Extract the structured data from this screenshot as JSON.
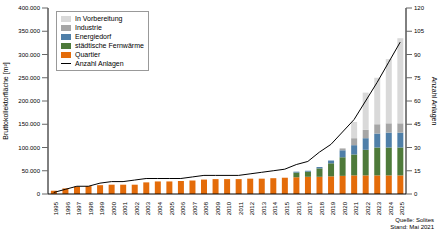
{
  "chart_data": {
    "type": "bar",
    "stacked": true,
    "grid": false,
    "legend": "upper left",
    "y_label": "Bruttokollektorfläche [m²]",
    "y2_label": "Anzahl Anlagen",
    "annotations": [
      "Quelle: Solites",
      "Stand: Mai 2021"
    ],
    "categories": [
      "1995",
      "1996",
      "1997",
      "1998",
      "1999",
      "2000",
      "2001",
      "2002",
      "2003",
      "2004",
      "2005",
      "2006",
      "2007",
      "2008",
      "2009",
      "2010",
      "2011",
      "2012",
      "2013",
      "2014",
      "2015",
      "2016",
      "2017",
      "2018",
      "2019",
      "2020",
      "2021",
      "2022",
      "2023",
      "2024",
      "2025"
    ],
    "ylim": [
      0,
      400000
    ],
    "yticks": [
      0,
      {
        "value": 50000,
        "label": "50.000"
      },
      {
        "value": 100000,
        "label": "100.000"
      },
      {
        "value": 150000,
        "label": "150.000"
      },
      {
        "value": 200000,
        "label": "200.000"
      },
      {
        "value": 250000,
        "label": "250.000"
      },
      {
        "value": 300000,
        "label": "300.000"
      },
      {
        "value": 350000,
        "label": "350.000"
      },
      {
        "value": 400000,
        "label": "400.000"
      }
    ],
    "y2lim": [
      0,
      120
    ],
    "y2ticks": [
      0,
      15,
      30,
      45,
      60,
      75,
      90,
      105,
      120
    ],
    "series": [
      {
        "name": "Quartier",
        "color": "#e46c0a",
        "type": "bar",
        "values": [
          7000,
          12000,
          16000,
          17000,
          19000,
          20000,
          20000,
          20000,
          25000,
          27000,
          27000,
          28000,
          29000,
          31000,
          32000,
          32000,
          32000,
          33000,
          33000,
          34000,
          35000,
          36000,
          37000,
          37000,
          38000,
          39000,
          40000,
          40000,
          40000,
          40000,
          40000
        ]
      },
      {
        "name": "städtische Fernwärme",
        "color": "#4e7a3a",
        "type": "bar",
        "values": [
          0,
          0,
          0,
          0,
          0,
          0,
          0,
          0,
          0,
          0,
          0,
          0,
          0,
          0,
          0,
          0,
          0,
          0,
          0,
          0,
          0,
          10000,
          11000,
          18000,
          28000,
          40000,
          45000,
          55000,
          60000,
          60000,
          60000
        ]
      },
      {
        "name": "Energiedorf",
        "color": "#4f7fa8",
        "type": "bar",
        "values": [
          0,
          0,
          0,
          0,
          0,
          0,
          0,
          0,
          0,
          0,
          0,
          0,
          0,
          0,
          0,
          0,
          0,
          0,
          0,
          0,
          0,
          2000,
          2000,
          3000,
          6000,
          15000,
          20000,
          25000,
          30000,
          32000,
          32000
        ]
      },
      {
        "name": "Industrie",
        "color": "#a6a6a6",
        "type": "bar",
        "values": [
          0,
          0,
          0,
          0,
          0,
          0,
          0,
          0,
          0,
          0,
          0,
          0,
          0,
          0,
          0,
          0,
          0,
          0,
          0,
          0,
          0,
          0,
          0,
          0,
          0,
          4000,
          15000,
          18000,
          20000,
          20000,
          20000
        ]
      },
      {
        "name": "In Vorbereitung",
        "color": "#d9d9d9",
        "type": "bar",
        "values": [
          0,
          0,
          0,
          0,
          0,
          0,
          0,
          0,
          0,
          0,
          0,
          0,
          0,
          0,
          0,
          0,
          0,
          0,
          0,
          0,
          0,
          0,
          0,
          0,
          0,
          0,
          35000,
          80000,
          100000,
          138000,
          183000
        ]
      },
      {
        "name": "Anzahl Anlagen",
        "color": "#000000",
        "type": "line",
        "axis": "y2",
        "values": [
          1,
          3,
          5,
          5,
          7,
          8,
          8,
          9,
          10,
          10,
          10,
          10,
          11,
          12,
          12,
          12,
          12,
          13,
          14,
          15,
          16,
          19,
          21,
          27,
          32,
          40,
          48,
          60,
          72,
          85,
          98
        ]
      }
    ]
  }
}
